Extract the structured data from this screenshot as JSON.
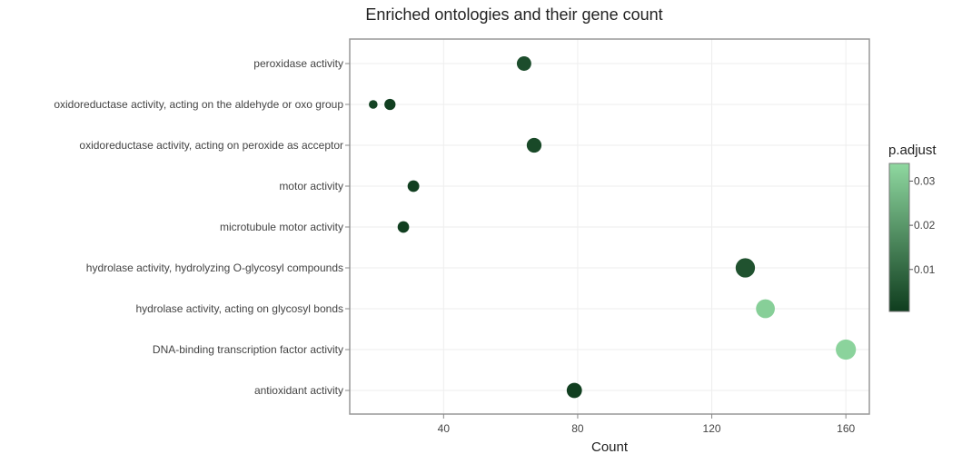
{
  "chart_data": {
    "type": "scatter",
    "title": "Enriched ontologies and their gene count",
    "xlabel": "Count",
    "ylabel": "",
    "xlim": [
      12,
      167
    ],
    "xticks": [
      40,
      80,
      120,
      160
    ],
    "grid": true,
    "categories": [
      "peroxidase activity",
      "oxidoreductase activity, acting on the aldehyde or oxo group",
      "oxidoreductase activity, acting on peroxide as acceptor",
      "motor activity",
      "microtubule motor activity",
      "hydrolase activity, hydrolyzing O-glycosyl compounds",
      "hydrolase activity, acting on glycosyl bonds",
      "DNA-binding transcription factor activity",
      "antioxidant activity"
    ],
    "points": [
      {
        "category": "peroxidase activity",
        "x": 64,
        "p_adjust": 0.004,
        "size": 0.55
      },
      {
        "category": "oxidoreductase activity, acting on the aldehyde or oxo group",
        "x": 19,
        "p_adjust": 0.002,
        "size": 0.2
      },
      {
        "category": "oxidoreductase activity, acting on the aldehyde or oxo group",
        "x": 24,
        "p_adjust": 0.001,
        "size": 0.35
      },
      {
        "category": "oxidoreductase activity, acting on peroxide as acceptor",
        "x": 67,
        "p_adjust": 0.003,
        "size": 0.57
      },
      {
        "category": "motor activity",
        "x": 31,
        "p_adjust": 0.001,
        "size": 0.38
      },
      {
        "category": "microtubule motor activity",
        "x": 28,
        "p_adjust": 0.001,
        "size": 0.37
      },
      {
        "category": "hydrolase activity, hydrolyzing O-glycosyl compounds",
        "x": 130,
        "p_adjust": 0.005,
        "size": 0.85
      },
      {
        "category": "hydrolase activity, acting on glycosyl bonds",
        "x": 136,
        "p_adjust": 0.032,
        "size": 0.82
      },
      {
        "category": "DNA-binding transcription factor activity",
        "x": 160,
        "p_adjust": 0.033,
        "size": 0.9
      },
      {
        "category": "antioxidant activity",
        "x": 79,
        "p_adjust": 0.001,
        "size": 0.6
      }
    ],
    "colorbar": {
      "title": "p.adjust",
      "range": [
        0.0005,
        0.034
      ],
      "ticks": [
        "0.01",
        "0.02",
        "0.03"
      ],
      "tick_values": [
        0.01,
        0.02,
        0.03
      ],
      "color_low": "#0f3d1e",
      "color_high": "#8fd8a0"
    }
  }
}
